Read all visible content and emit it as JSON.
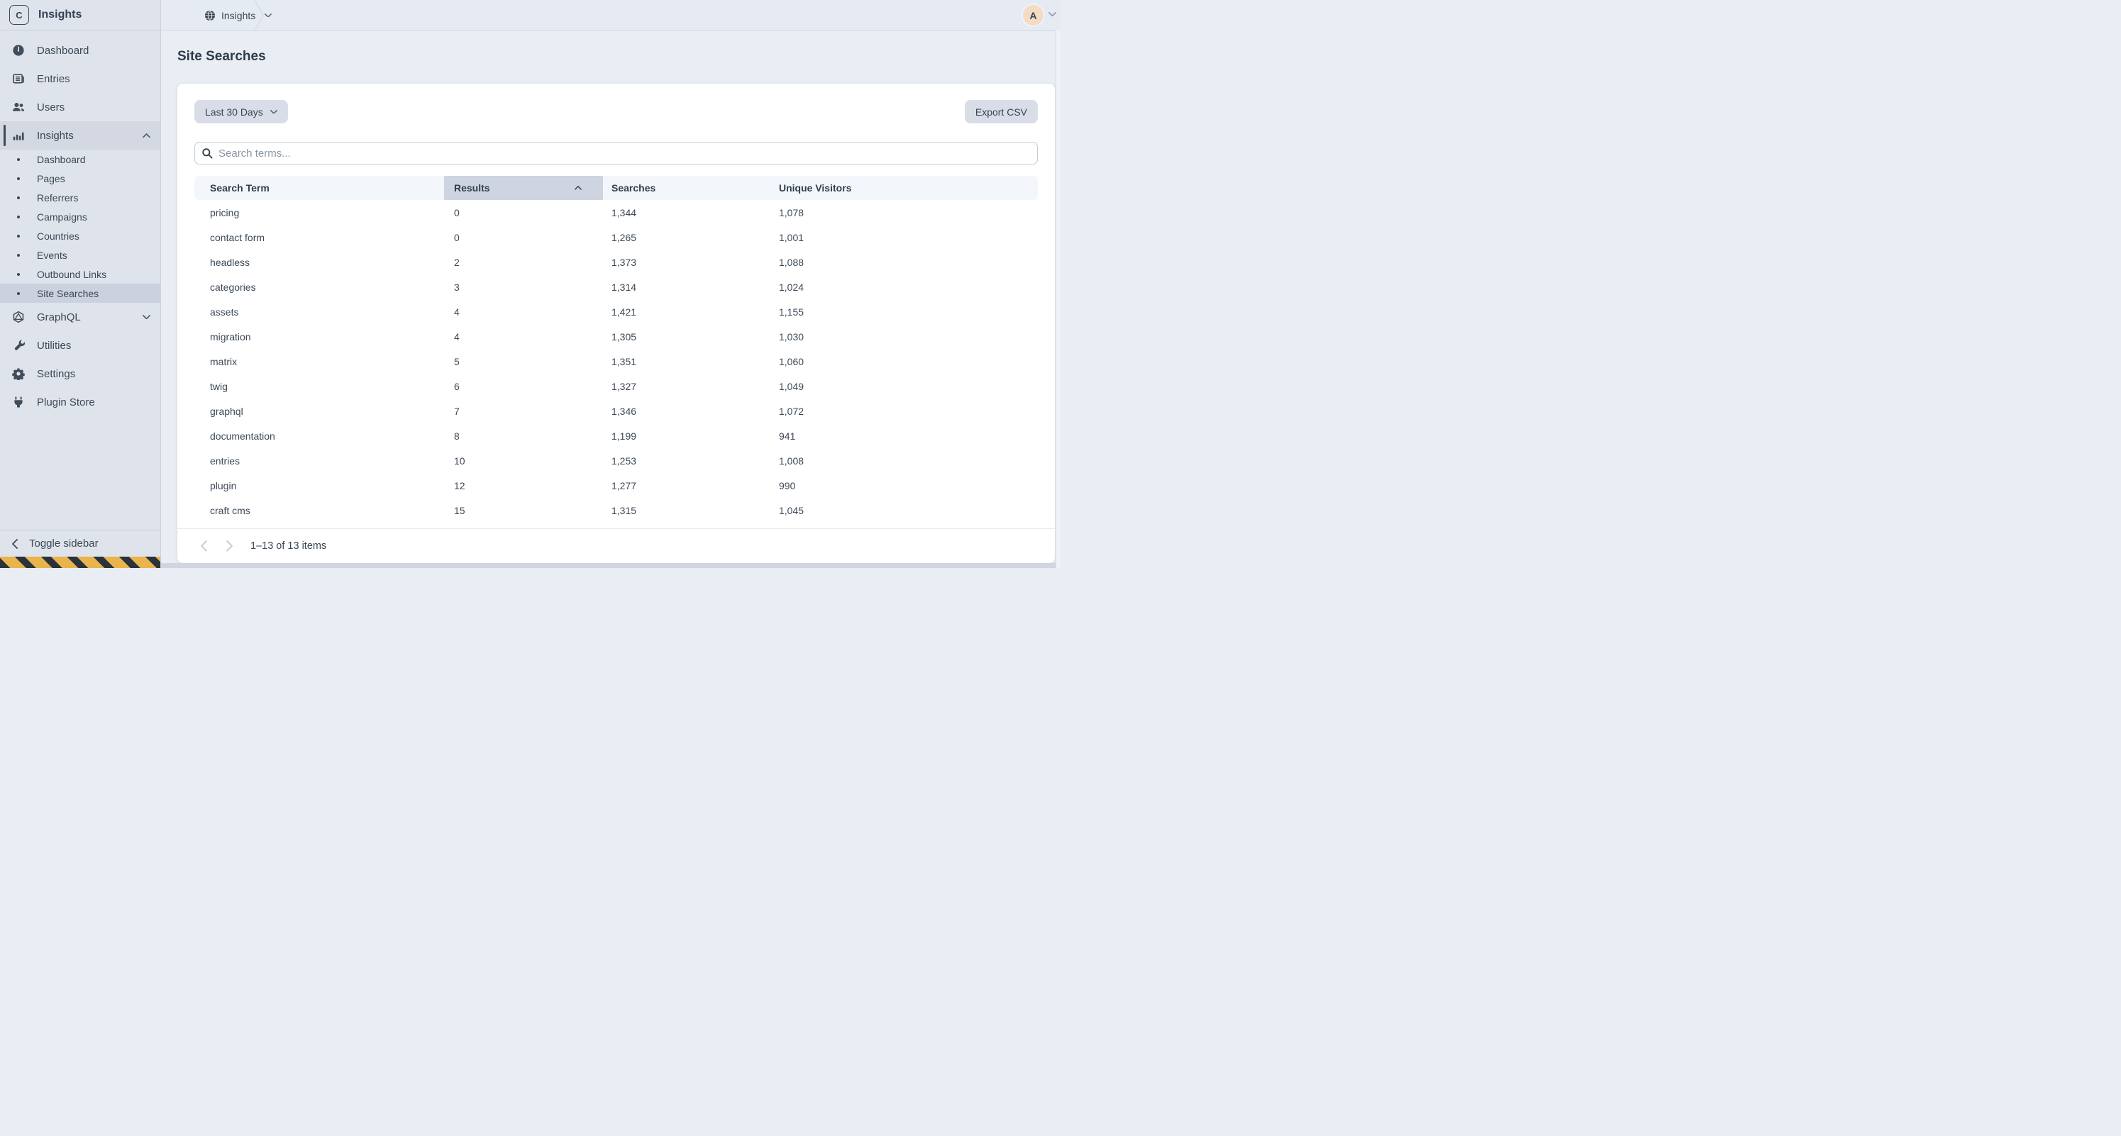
{
  "app": {
    "logo_letter": "C",
    "name": "Insights"
  },
  "topbar": {
    "breadcrumb": "Insights",
    "avatar_initial": "A"
  },
  "sidebar": {
    "items": [
      {
        "label": "Dashboard",
        "icon": "gauge-icon"
      },
      {
        "label": "Entries",
        "icon": "entries-icon"
      },
      {
        "label": "Users",
        "icon": "users-icon"
      },
      {
        "label": "Insights",
        "icon": "bar-chart-icon",
        "active": true,
        "expanded": true
      },
      {
        "label": "GraphQL",
        "icon": "graphql-icon",
        "collapsed": true
      },
      {
        "label": "Utilities",
        "icon": "wrench-icon"
      },
      {
        "label": "Settings",
        "icon": "gear-icon"
      },
      {
        "label": "Plugin Store",
        "icon": "plug-icon"
      }
    ],
    "insights_children": [
      {
        "label": "Dashboard"
      },
      {
        "label": "Pages"
      },
      {
        "label": "Referrers"
      },
      {
        "label": "Campaigns"
      },
      {
        "label": "Countries"
      },
      {
        "label": "Events"
      },
      {
        "label": "Outbound Links"
      },
      {
        "label": "Site Searches",
        "selected": true
      }
    ],
    "toggle_label": "Toggle sidebar"
  },
  "page": {
    "title": "Site Searches"
  },
  "toolbar": {
    "date_range_label": "Last 30 Days",
    "export_label": "Export CSV"
  },
  "search": {
    "placeholder": "Search terms..."
  },
  "table": {
    "columns": [
      {
        "label": "Search Term"
      },
      {
        "label": "Results",
        "sorted": "asc"
      },
      {
        "label": "Searches"
      },
      {
        "label": "Unique Visitors"
      }
    ],
    "rows": [
      {
        "term": "pricing",
        "results": "0",
        "searches": "1,344",
        "unique_visitors": "1,078"
      },
      {
        "term": "contact form",
        "results": "0",
        "searches": "1,265",
        "unique_visitors": "1,001"
      },
      {
        "term": "headless",
        "results": "2",
        "searches": "1,373",
        "unique_visitors": "1,088"
      },
      {
        "term": "categories",
        "results": "3",
        "searches": "1,314",
        "unique_visitors": "1,024"
      },
      {
        "term": "assets",
        "results": "4",
        "searches": "1,421",
        "unique_visitors": "1,155"
      },
      {
        "term": "migration",
        "results": "4",
        "searches": "1,305",
        "unique_visitors": "1,030"
      },
      {
        "term": "matrix",
        "results": "5",
        "searches": "1,351",
        "unique_visitors": "1,060"
      },
      {
        "term": "twig",
        "results": "6",
        "searches": "1,327",
        "unique_visitors": "1,049"
      },
      {
        "term": "graphql",
        "results": "7",
        "searches": "1,346",
        "unique_visitors": "1,072"
      },
      {
        "term": "documentation",
        "results": "8",
        "searches": "1,199",
        "unique_visitors": "941"
      },
      {
        "term": "entries",
        "results": "10",
        "searches": "1,253",
        "unique_visitors": "1,008"
      },
      {
        "term": "plugin",
        "results": "12",
        "searches": "1,277",
        "unique_visitors": "990"
      },
      {
        "term": "craft cms",
        "results": "15",
        "searches": "1,315",
        "unique_visitors": "1,045"
      }
    ]
  },
  "pagination": {
    "label": "1–13 of 13 items"
  },
  "colors": {
    "sidebar_bg": "#dfe3ec",
    "topbar_bg": "#e6eaf2",
    "content_bg": "#e9edf4",
    "panel_bg": "#ffffff",
    "active_item_bg": "#d3d8e3",
    "selected_subitem_bg": "#cbd1dd",
    "sorted_column_bg": "#ced4e0",
    "header_row_bg": "#f3f6fa",
    "button_bg": "#d9dde8",
    "text_dark": "#3c4956",
    "avatar_bg": "#f3dcc3",
    "stripe_yellow": "#e9b44c",
    "stripe_dark": "#2a323c"
  }
}
